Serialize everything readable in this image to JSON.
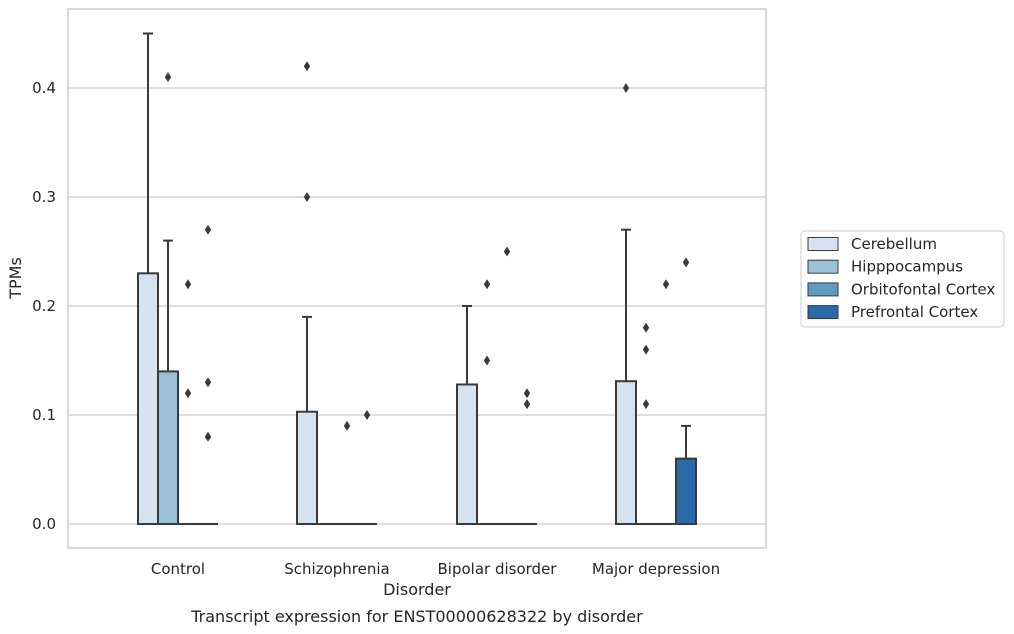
{
  "chart_data": {
    "type": "box",
    "caption": "Transcript expression for ENST00000628322 by disorder",
    "xlabel": "Disorder",
    "ylabel": "TPMs",
    "ylim": [
      -0.022,
      0.474
    ],
    "yticks": [
      0.0,
      0.1,
      0.2,
      0.3,
      0.4
    ],
    "ytick_labels": [
      "0.0",
      "0.1",
      "0.2",
      "0.3",
      "0.4"
    ],
    "grid": "horizontal",
    "legend_position": "right",
    "categories": [
      "Control",
      "Schizophrenia",
      "Bipolar disorder",
      "Major depression"
    ],
    "series": [
      {
        "name": "Cerebellum",
        "color": "#d4e3ef",
        "boxes": [
          {
            "q1": 0.0,
            "median": 0.0,
            "q3": 0.23,
            "whisker_low": 0.0,
            "whisker_high": 0.45,
            "outliers": []
          },
          {
            "q1": 0.0,
            "median": 0.0,
            "q3": 0.103,
            "whisker_low": 0.0,
            "whisker_high": 0.19,
            "outliers": [
              0.3,
              0.42
            ]
          },
          {
            "q1": 0.0,
            "median": 0.0,
            "q3": 0.128,
            "whisker_low": 0.0,
            "whisker_high": 0.2,
            "outliers": []
          },
          {
            "q1": 0.0,
            "median": 0.0,
            "q3": 0.131,
            "whisker_low": 0.0,
            "whisker_high": 0.27,
            "outliers": [
              0.4
            ]
          }
        ]
      },
      {
        "name": "Hipppocampus",
        "color": "#9bc1d8",
        "boxes": [
          {
            "q1": 0.0,
            "median": 0.0,
            "q3": 0.14,
            "whisker_low": 0.0,
            "whisker_high": 0.26,
            "outliers": [
              0.41
            ]
          },
          {
            "q1": 0.0,
            "median": 0.0,
            "q3": 0.0,
            "whisker_low": 0.0,
            "whisker_high": 0.0,
            "outliers": []
          },
          {
            "q1": 0.0,
            "median": 0.0,
            "q3": 0.0,
            "whisker_low": 0.0,
            "whisker_high": 0.0,
            "outliers": [
              0.15,
              0.22
            ]
          },
          {
            "q1": 0.0,
            "median": 0.0,
            "q3": 0.0,
            "whisker_low": 0.0,
            "whisker_high": 0.0,
            "outliers": [
              0.11,
              0.16,
              0.18
            ]
          }
        ]
      },
      {
        "name": "Orbitofontal Cortex",
        "color": "#5f9ac2",
        "boxes": [
          {
            "q1": 0.0,
            "median": 0.0,
            "q3": 0.0,
            "whisker_low": 0.0,
            "whisker_high": 0.0,
            "outliers": [
              0.12,
              0.22
            ]
          },
          {
            "q1": 0.0,
            "median": 0.0,
            "q3": 0.0,
            "whisker_low": 0.0,
            "whisker_high": 0.0,
            "outliers": [
              0.09
            ]
          },
          {
            "q1": 0.0,
            "median": 0.0,
            "q3": 0.0,
            "whisker_low": 0.0,
            "whisker_high": 0.0,
            "outliers": [
              0.25
            ]
          },
          {
            "q1": 0.0,
            "median": 0.0,
            "q3": 0.0,
            "whisker_low": 0.0,
            "whisker_high": 0.0,
            "outliers": [
              0.22
            ]
          }
        ]
      },
      {
        "name": "Prefrontal Cortex",
        "color": "#2a6aa8",
        "boxes": [
          {
            "q1": 0.0,
            "median": 0.0,
            "q3": 0.0,
            "whisker_low": 0.0,
            "whisker_high": 0.0,
            "outliers": [
              0.08,
              0.13,
              0.27
            ]
          },
          {
            "q1": 0.0,
            "median": 0.0,
            "q3": 0.0,
            "whisker_low": 0.0,
            "whisker_high": 0.0,
            "outliers": [
              0.1
            ]
          },
          {
            "q1": 0.0,
            "median": 0.0,
            "q3": 0.0,
            "whisker_low": 0.0,
            "whisker_high": 0.0,
            "outliers": [
              0.11,
              0.12
            ]
          },
          {
            "q1": 0.0,
            "median": 0.0,
            "q3": 0.06,
            "whisker_low": 0.0,
            "whisker_high": 0.09,
            "outliers": [
              0.24
            ]
          }
        ]
      }
    ]
  }
}
